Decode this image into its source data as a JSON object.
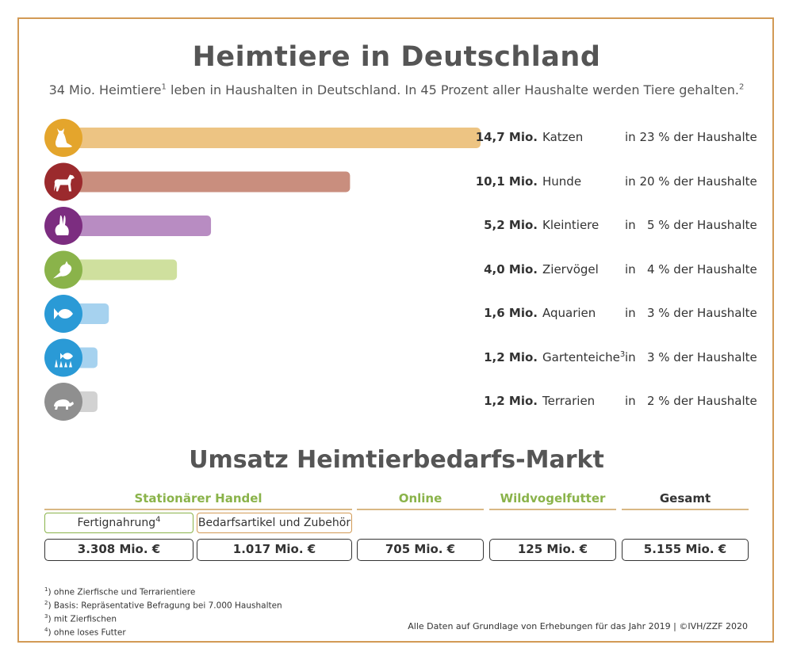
{
  "title": "Heimtiere in Deutschland",
  "subtitle_main": "34 Mio. Heimtiere",
  "subtitle_fn1": "1",
  "subtitle_rest": " leben in Haushalten in Deutschland. In 45 Prozent aller Haushalte werden Tiere gehalten.",
  "subtitle_fn2": "2",
  "chart_data": {
    "type": "bar",
    "orientation": "horizontal",
    "categories": [
      "Katzen",
      "Hunde",
      "Kleintiere",
      "Ziervögel",
      "Aquarien",
      "Gartenteiche",
      "Terrarien"
    ],
    "values": [
      14.7,
      10.1,
      5.2,
      4.0,
      1.6,
      1.2,
      1.2
    ],
    "value_labels": [
      "14,7 Mio.",
      "10,1 Mio.",
      "5,2 Mio.",
      "4,0 Mio.",
      "1,6 Mio.",
      "1,2 Mio.",
      "1,2 Mio."
    ],
    "category_footnotes": [
      "",
      "",
      "",
      "",
      "",
      "3",
      ""
    ],
    "household_share": [
      "in 23 % der Haushalte",
      "in 20 % der Haushalte",
      "in   5 % der Haushalte",
      "in   4 % der Haushalte",
      "in   3 % der Haushalte",
      "in   3 % der Haushalte",
      "in   2 % der Haushalte"
    ],
    "colors": [
      "#edc483",
      "#c98e7e",
      "#b88cc2",
      "#cfe09e",
      "#a6d2ef",
      "#a6d2ef",
      "#d2d2d2"
    ],
    "icon_colors": [
      "#e4a52c",
      "#9b2a2d",
      "#7c2d80",
      "#8ab34a",
      "#2a9ad6",
      "#2a9ad6",
      "#8f8f8f"
    ],
    "icons": [
      "cat-icon",
      "dog-icon",
      "rabbit-icon",
      "bird-icon",
      "fish-icon",
      "pond-fish-icon",
      "turtle-icon"
    ],
    "xlim": [
      0,
      15
    ]
  },
  "market": {
    "title": "Umsatz Heimtierbedarfs-Markt",
    "segments": {
      "stationary": "Stationärer Handel",
      "online": "Online",
      "wild": "Wildvogelfutter",
      "total": "Gesamt"
    },
    "sub_fertig": "Fertignahrung",
    "sub_fertig_fn": "4",
    "sub_bedarf": "Bedarfsartikel und Zubehör",
    "values": {
      "fertig": "3.308 Mio. €",
      "bedarf": "1.017 Mio. €",
      "online": "705 Mio. €",
      "wild": "125 Mio. €",
      "total": "5.155 Mio. €"
    }
  },
  "footnotes": [
    {
      "mark": "1",
      "text": ") ohne Zierfische und Terrarientiere"
    },
    {
      "mark": "2",
      "text": ") Basis: Repräsentative Befragung bei 7.000 Haushalten"
    },
    {
      "mark": "3",
      "text": ") mit Zierfischen"
    },
    {
      "mark": "4",
      "text": ") ohne loses Futter"
    }
  ],
  "source": "Alle Daten auf Grundlage von Erhebungen für das Jahr 2019 | ©IVH/ZZF 2020"
}
